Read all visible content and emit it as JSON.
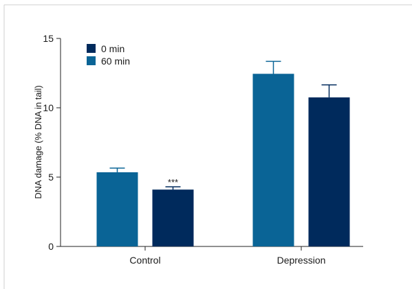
{
  "chart_data": {
    "type": "bar",
    "title": "",
    "xlabel": "",
    "ylabel": "DNA damage (% DNA in tail)",
    "ylim": [
      0,
      15
    ],
    "yticks": [
      "0",
      "5",
      "10",
      "15"
    ],
    "categories": [
      "Control",
      "Depression"
    ],
    "series": [
      {
        "name": "60 min",
        "color": "#0a6496",
        "values": [
          5.35,
          12.45
        ],
        "errors": [
          0.3,
          0.9
        ]
      },
      {
        "name": "0 min",
        "color": "#002a5c",
        "values": [
          4.1,
          10.75
        ],
        "errors": [
          0.2,
          0.9
        ]
      }
    ],
    "legend": {
      "position": "top-left",
      "entries": [
        {
          "label": "0 min",
          "color": "#002a5c"
        },
        {
          "label": "60 min",
          "color": "#0a6496"
        }
      ]
    },
    "annotations": [
      {
        "category": "Control",
        "series": "0 min",
        "text": "***"
      }
    ],
    "grid": false
  }
}
